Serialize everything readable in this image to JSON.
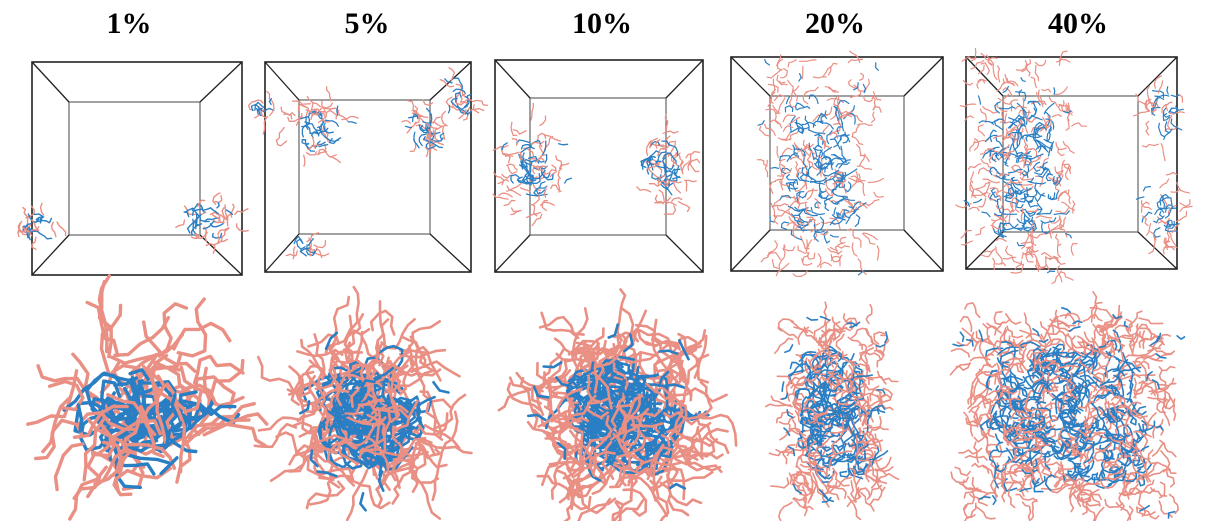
{
  "panels": [
    {
      "label": "1%",
      "concentration_percent": 1
    },
    {
      "label": "5%",
      "concentration_percent": 5
    },
    {
      "label": "10%",
      "concentration_percent": 10
    },
    {
      "label": "20%",
      "concentration_percent": 20
    },
    {
      "label": "40%",
      "concentration_percent": 40
    }
  ],
  "colors": {
    "hydrophobic_beads": "#2a7fc4",
    "hydrophilic_beads": "#e98f84",
    "box_edges": "#222222",
    "background": "#ffffff"
  }
}
